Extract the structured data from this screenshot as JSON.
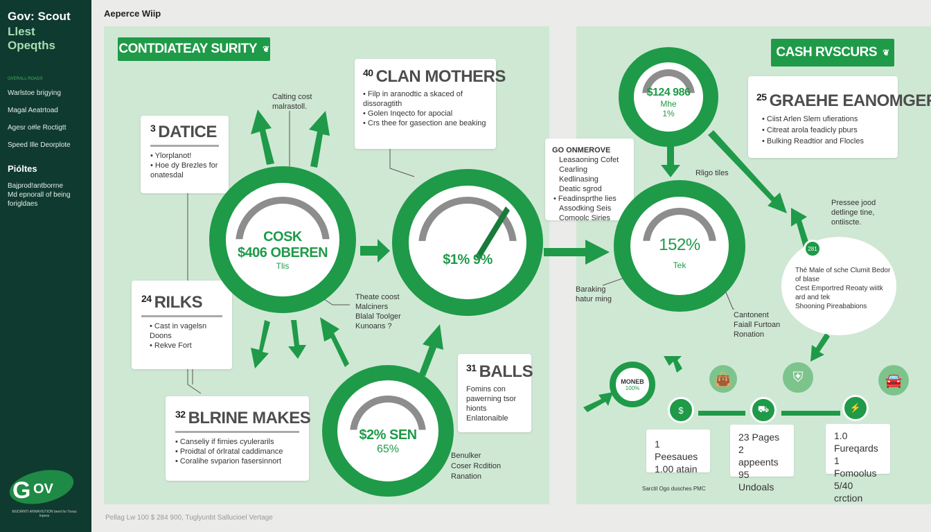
{
  "sidebar": {
    "brand": [
      "Gov: Scout",
      "Llest",
      "Opeqths"
    ],
    "section_label": "OVERALL ROADS",
    "items": [
      "Warlstoe brigying",
      "Magal Aeatrtoad",
      "Agesr o#le Roctigtt",
      "Speed Ille Deorplote"
    ],
    "profiles_heading": "Pióltes",
    "profiles_text": [
      "Bajprod!antborrne",
      "Md epnorall of being",
      "forigldaes"
    ],
    "logo_text": "GOV",
    "logo_caption": "MUDIÁNTI ANNAVIUTION beed ho Tovau Inpess"
  },
  "header": {
    "title": "Aeperce Wiip"
  },
  "footer": {
    "text": "Pellag Lw 100 $ 284 900, Tuglyunbt Sallucioel Vertage"
  },
  "colors": {
    "accent": "#1f9a48",
    "sidebar": "#0f3a2f",
    "panel": "#cfe8d4"
  },
  "left_panel": {
    "banner": {
      "label": "CONTDIATEAY SURITY",
      "icon": "leaf-badge-icon"
    },
    "cards": [
      {
        "num": "3",
        "title": "DATICE",
        "bullets": [
          "Ylorplanot!",
          "Hoe dy Brezles for onatesdal"
        ]
      },
      {
        "num": "40",
        "title": "CLAN MOTHERS",
        "bullets": [
          "Filp in aranodtic a skaced of dissoragtith",
          "Golen Inqecto for apocial",
          "Crs thee for gasection ane beaking"
        ]
      },
      {
        "num": "24",
        "title": "RILKS",
        "bullets": [
          "Cast in vagelsn Doons",
          "Rekve Fort"
        ]
      },
      {
        "num": "32",
        "title": "BLRINE MAKES",
        "bullets": [
          "Canseliy if firnies cyulerarils",
          "Proidtal of órlratal caddimance",
          "Coralihe svparion fasersinnort"
        ]
      },
      {
        "num": "31",
        "title": "BALLS",
        "lines": [
          "Fomins con",
          "pawerning tsor",
          "hionts",
          "Enlatonaible"
        ]
      }
    ],
    "gauges": [
      {
        "label": "COSK",
        "value": "$406 OBEREN",
        "sub": "Tlis"
      },
      {
        "value": "$1% 9%"
      },
      {
        "value": "$2% SEN",
        "sub": "65%"
      }
    ],
    "notes": {
      "top": [
        "Calting cost",
        "malrastoll."
      ],
      "middle": [
        "Theate coost",
        "Malciners",
        "Blalal Toolger",
        "Kunoans ?"
      ],
      "bottom": [
        "Benulker",
        "Coser Rcdition",
        "Ranation"
      ]
    }
  },
  "right_panel": {
    "banner": {
      "label": "CASH RVSCURS",
      "icon": "leaf-badge-icon"
    },
    "card_25": {
      "num": "25",
      "title": "GRAEHE EANOMGER",
      "bullets": [
        "Ciist Arlen Slem ufierations",
        "Citreat arola feadicly pburs",
        "Bulking Readtior and Flocles"
      ]
    },
    "card_60": {
      "title": "GO ONMEROVE",
      "lines": [
        "Leasaoning Cofet",
        "Cearling Kedlinasing",
        "Deatic sgrod"
      ],
      "bullet": [
        "Feadinsprthe lies",
        "Assodking Seis",
        "Comoolc Siries"
      ]
    },
    "gauges": [
      {
        "value": "$124 986",
        "label": "Mhe",
        "sub": "1%"
      },
      {
        "value": "152%",
        "sub": "Tek"
      },
      {
        "label": "MONEB",
        "sub": "100%"
      }
    ],
    "notes": {
      "ridge": "Rligo tiles",
      "pressure": [
        "Pressee jood",
        "detlinge tine,",
        "ontiiscte."
      ],
      "baraking": [
        "Baraking",
        "hatur ming"
      ],
      "cantonent": [
        "Cantonent",
        "Faiall Furtoan",
        "Ronation"
      ],
      "credit": "Sarctil Ogo dusches PMC"
    },
    "cloud": {
      "badge": "281",
      "bullets": [
        "Thé Male of sche Clumit Bedor of blase",
        "Cest Emportred Reoaty wiitk ard and tek",
        "Shooning Pireababions"
      ]
    },
    "timeline": [
      {
        "icon": "money-tree-icon",
        "lines": [
          "1 Peesaues",
          "1.00 atain"
        ]
      },
      {
        "icon": "truck-icon",
        "lines": [
          "23 Pages",
          "2 appeents",
          "95 Undoals"
        ]
      },
      {
        "icon": "lightning-check-icon",
        "lines": [
          "1.0 Fureqards",
          "1 Fomoolus",
          "5/40 crction"
        ]
      }
    ],
    "light_icons": [
      "bag-icon",
      "shield-gate-icon",
      "car-icon"
    ]
  }
}
